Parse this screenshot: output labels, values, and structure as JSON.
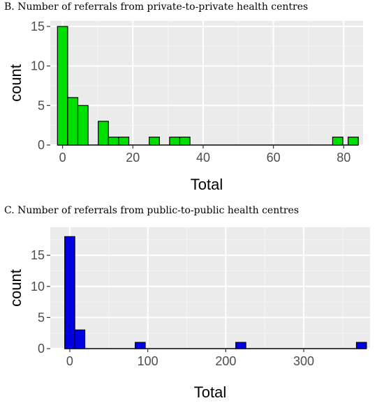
{
  "chart_data": [
    {
      "type": "bar",
      "title": "B. Number of referrals from private-to-private health centres",
      "xlabel": "Total",
      "ylabel": "count",
      "bar_color": "#00e000",
      "panel_background": "#ebebeb",
      "grid": true,
      "xlim": [
        -3.5,
        85.5
      ],
      "ylim": [
        0,
        15.7
      ],
      "xticks": [
        0,
        20,
        40,
        60,
        80
      ],
      "yticks": [
        0,
        5,
        10,
        15
      ],
      "bin_width": 2.9,
      "bins": [
        {
          "x": 0.0,
          "count": 15
        },
        {
          "x": 2.9,
          "count": 6
        },
        {
          "x": 5.8,
          "count": 5
        },
        {
          "x": 8.7,
          "count": 0
        },
        {
          "x": 11.6,
          "count": 3
        },
        {
          "x": 14.5,
          "count": 1
        },
        {
          "x": 17.4,
          "count": 1
        },
        {
          "x": 20.3,
          "count": 0
        },
        {
          "x": 23.2,
          "count": 0
        },
        {
          "x": 26.1,
          "count": 1
        },
        {
          "x": 29.0,
          "count": 0
        },
        {
          "x": 31.9,
          "count": 1
        },
        {
          "x": 34.8,
          "count": 1
        },
        {
          "x": 37.7,
          "count": 0
        },
        {
          "x": 40.6,
          "count": 0
        },
        {
          "x": 43.5,
          "count": 0
        },
        {
          "x": 46.4,
          "count": 0
        },
        {
          "x": 49.3,
          "count": 0
        },
        {
          "x": 52.2,
          "count": 0
        },
        {
          "x": 55.1,
          "count": 0
        },
        {
          "x": 58.0,
          "count": 0
        },
        {
          "x": 60.9,
          "count": 0
        },
        {
          "x": 63.8,
          "count": 0
        },
        {
          "x": 66.7,
          "count": 0
        },
        {
          "x": 69.6,
          "count": 0
        },
        {
          "x": 72.5,
          "count": 0
        },
        {
          "x": 75.4,
          "count": 0
        },
        {
          "x": 78.3,
          "count": 1
        },
        {
          "x": 81.2,
          "count": 0
        },
        {
          "x": 82.7,
          "count": 1
        }
      ]
    },
    {
      "type": "bar",
      "title": "C. Number of referrals from public-to-public health centres",
      "xlabel": "Total",
      "ylabel": "count",
      "bar_color": "#0000e0",
      "panel_background": "#ebebeb",
      "grid": true,
      "xlim": [
        -25,
        385
      ],
      "ylim": [
        0,
        19.5
      ],
      "xticks": [
        0,
        100,
        200,
        300
      ],
      "yticks": [
        0,
        5,
        10,
        15
      ],
      "bin_width": 12.9,
      "bins": [
        {
          "x": 0,
          "count": 18
        },
        {
          "x": 12.9,
          "count": 3
        },
        {
          "x": 90.3,
          "count": 1
        },
        {
          "x": 219.3,
          "count": 1
        },
        {
          "x": 374,
          "count": 1
        }
      ]
    }
  ]
}
